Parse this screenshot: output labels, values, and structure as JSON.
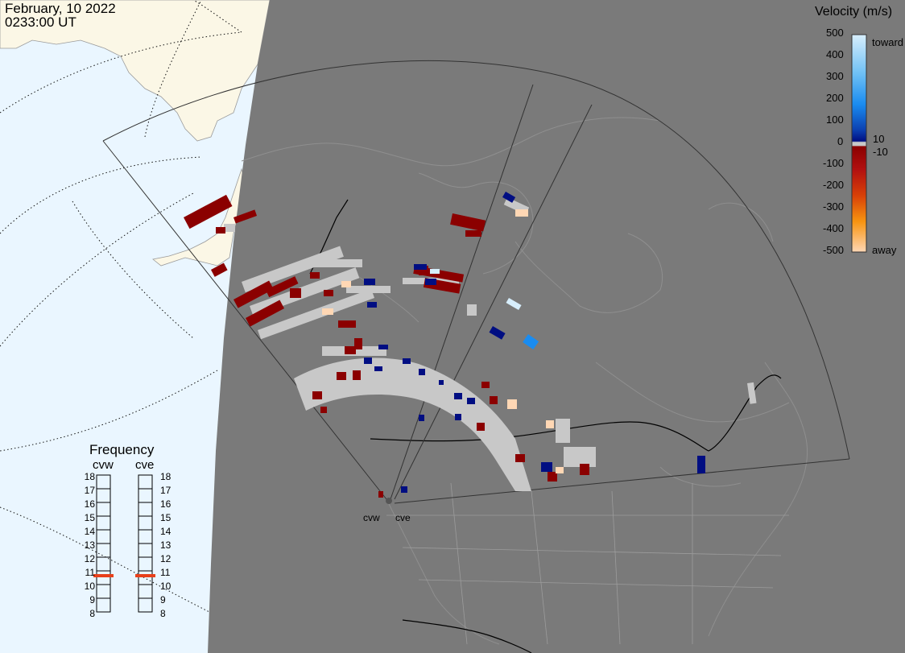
{
  "header": {
    "date": "February, 10 2022",
    "time": "0233:00 UT"
  },
  "colorbar": {
    "title": "Velocity (m/s)",
    "ticks": [
      "500",
      "400",
      "300",
      "200",
      "100",
      "10",
      "0",
      "-10",
      "-100",
      "-200",
      "-300",
      "-400",
      "-500"
    ],
    "toward_label": "toward",
    "away_label": "away",
    "colors": {
      "toward_max": "#d7eefc",
      "toward_mid": "#1a8cf0",
      "toward_min": "#000e82",
      "away_min": "#8b0000",
      "away_mid": "#e8600a",
      "away_max": "#ffd7b4",
      "ground_scatter": "#c8c8c8"
    }
  },
  "frequency": {
    "title": "Frequency",
    "radars": [
      {
        "name": "cvw",
        "value_mhz": 11
      },
      {
        "name": "cve",
        "value_mhz": 11
      }
    ],
    "ticks": [
      "18",
      "17",
      "16",
      "15",
      "14",
      "13",
      "12",
      "11",
      "10",
      "9",
      "8"
    ],
    "marker_color": "#e8401a"
  },
  "sites": [
    "cvw",
    "cve"
  ],
  "map": {
    "night_color": "#7a7a7a",
    "ocean_day": "#eaf6ff",
    "land_day": "#fbf7e6",
    "coast_color": "#909090"
  }
}
